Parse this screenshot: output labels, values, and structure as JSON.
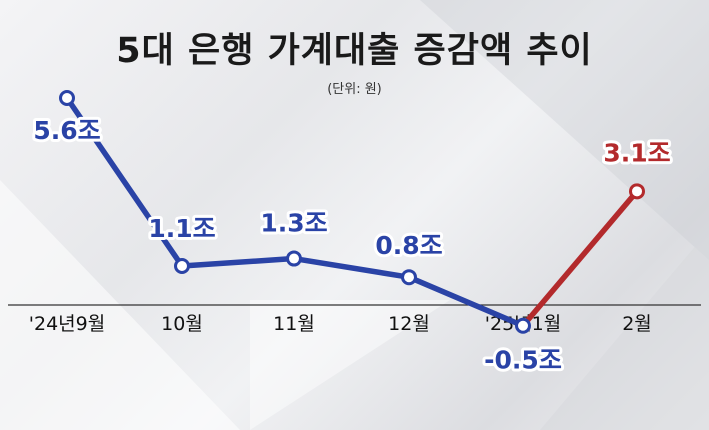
{
  "title": "5대 은행 가계대출 증감액 추이",
  "unit": "(단위: 원)",
  "chart_data": {
    "type": "line",
    "title": "5대 은행 가계대출 증감액 추이",
    "categories": [
      "'24년9월",
      "10월",
      "11월",
      "12월",
      "'25년1월",
      "2월"
    ],
    "values": [
      5.6,
      1.1,
      1.3,
      0.8,
      -0.5,
      3.1
    ],
    "labels": [
      "5.6조",
      "1.1조",
      "1.3조",
      "0.8조",
      "-0.5조",
      "3.1조"
    ],
    "colors": {
      "blue": "#2a43a6",
      "red": "#b32a2c"
    },
    "ylim": [
      -1,
      6
    ],
    "grid": false,
    "legend": "none"
  }
}
